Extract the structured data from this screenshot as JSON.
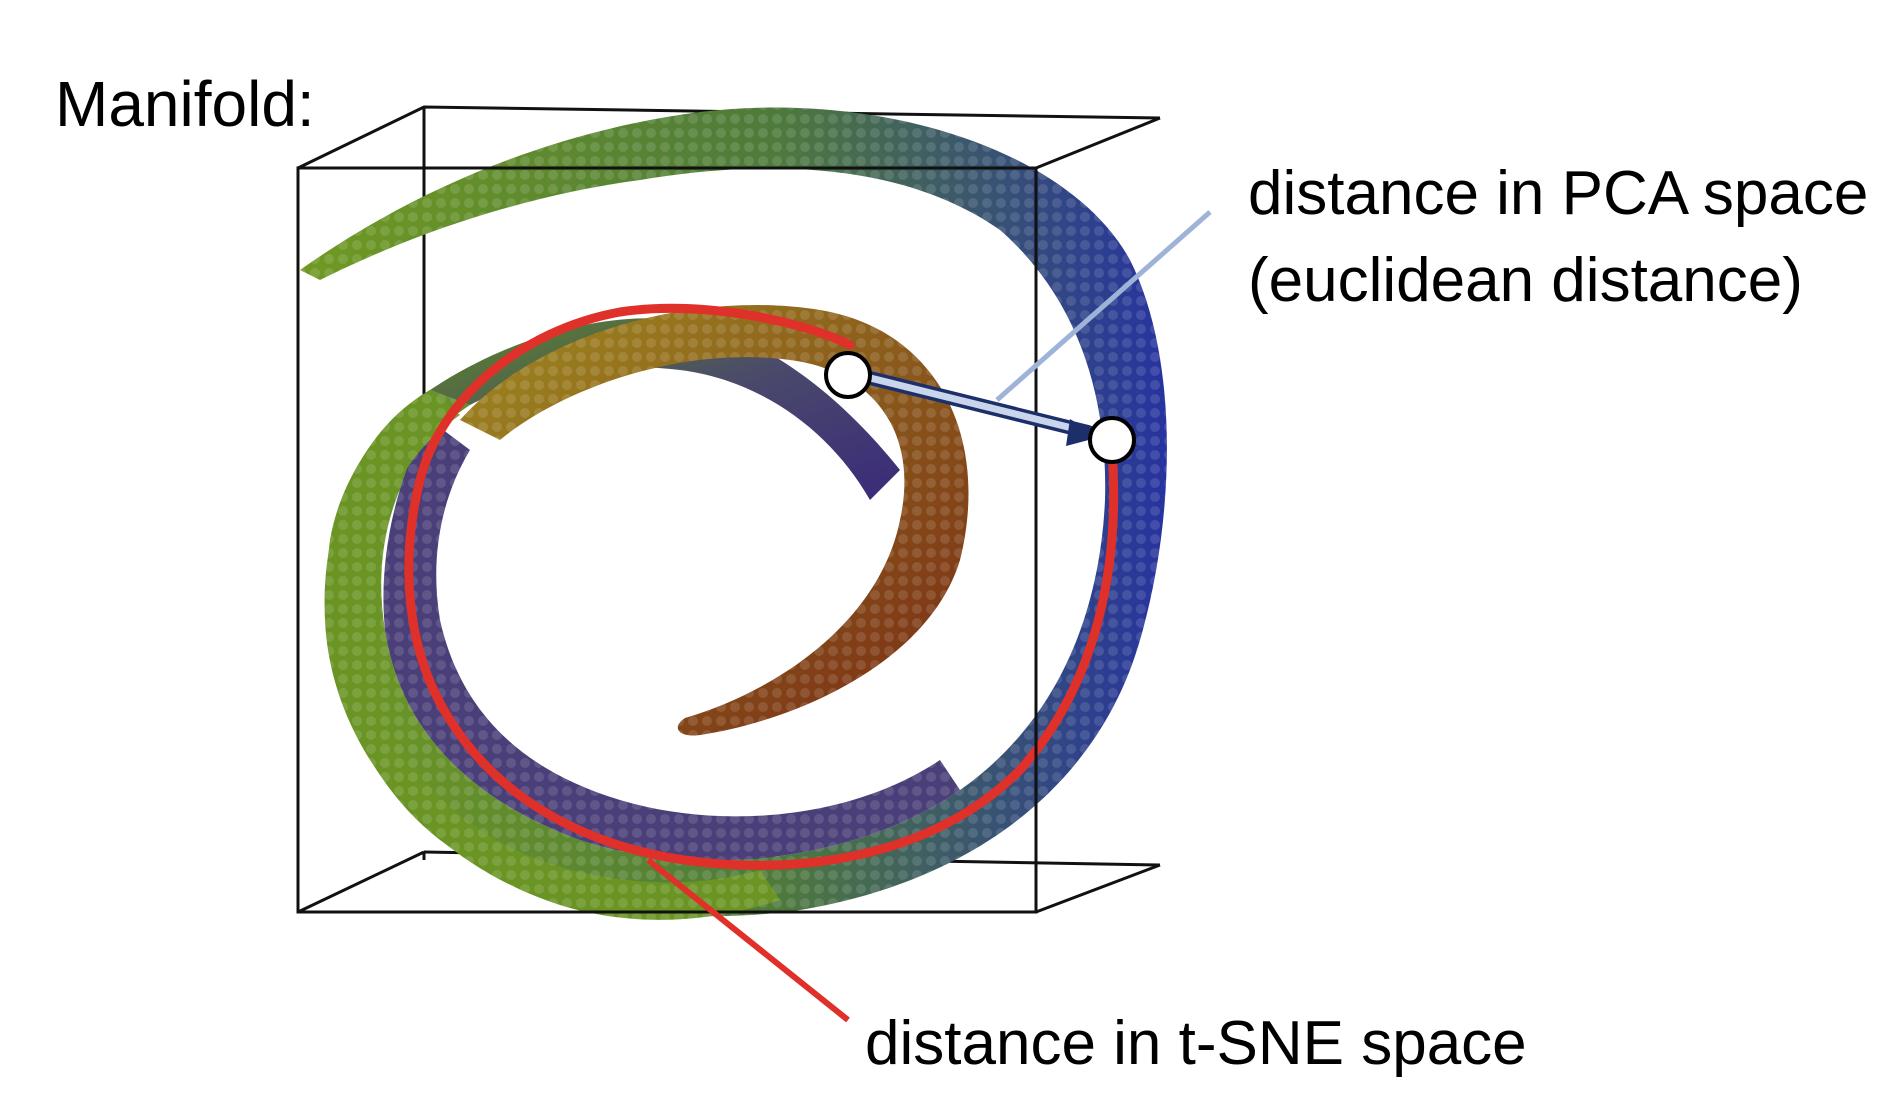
{
  "title": "Manifold:",
  "annotations": {
    "pca_line1": "distance in PCA space",
    "pca_line2": "(euclidean distance)",
    "tsne": "distance in t-SNE space"
  },
  "colors": {
    "pca_pointer": "#9eb3d8",
    "pca_arrow": "#1c2f6b",
    "pca_arrow_fill": "#c9d5ea",
    "tsne_path": "#e0302a",
    "box": "#111111",
    "manifold_green": "#5a8a1e",
    "manifold_blue": "#2a3a9a",
    "manifold_red": "#8a2a1a"
  }
}
